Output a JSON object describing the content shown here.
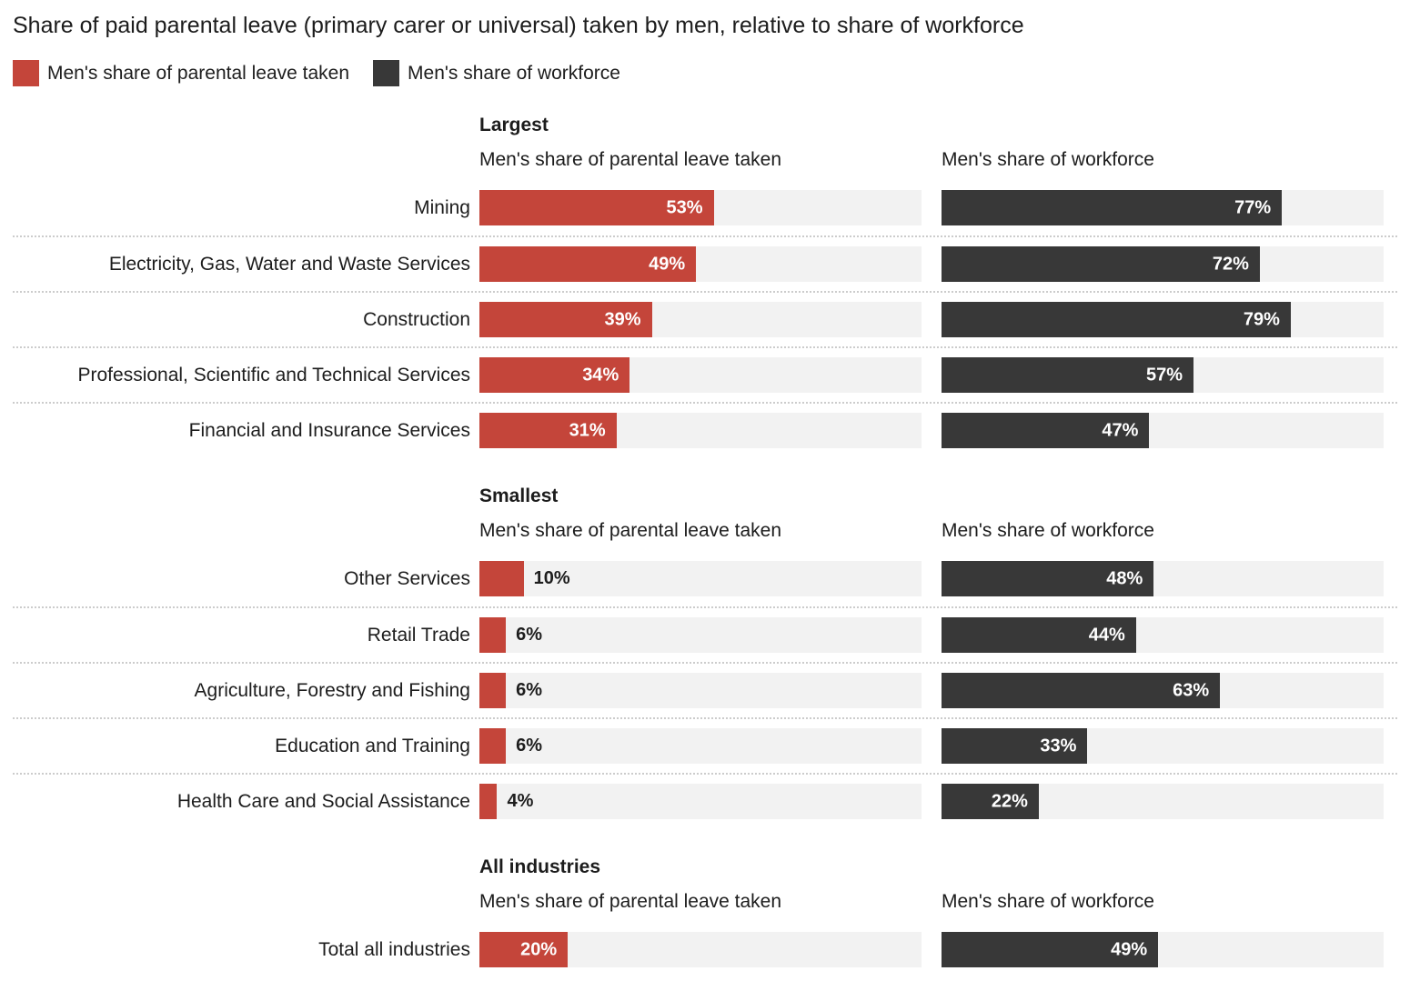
{
  "title": "Share of paid parental leave (primary carer or universal) taken by men, relative to share of workforce",
  "legend": {
    "position": "top",
    "items": [
      {
        "label": "Men's share of parental leave taken",
        "color": "#c4453a"
      },
      {
        "label": "Men's share of workforce",
        "color": "#383838"
      }
    ]
  },
  "columns": {
    "leave": "Men's share of parental leave taken",
    "workforce": "Men's share of workforce"
  },
  "colors": {
    "leave_bar": "#c4453a",
    "workforce_bar": "#383838",
    "track": "#f2f2f2",
    "separator": "#cccccc",
    "text": "#1d1d1d",
    "value_inside": "#ffffff"
  },
  "chart_data": {
    "type": "bar",
    "orientation": "horizontal",
    "unit": "%",
    "xlim": [
      0,
      100
    ],
    "grid": false,
    "title": "Share of paid parental leave (primary carer or universal) taken by men, relative to share of workforce",
    "series_names": [
      "Men's share of parental leave taken",
      "Men's share of workforce"
    ],
    "sections": [
      {
        "heading": "Largest",
        "rows": [
          {
            "label": "Mining",
            "leave": 53,
            "workforce": 77
          },
          {
            "label": "Electricity, Gas, Water and Waste Services",
            "leave": 49,
            "workforce": 72
          },
          {
            "label": "Construction",
            "leave": 39,
            "workforce": 79
          },
          {
            "label": "Professional, Scientific and Technical Services",
            "leave": 34,
            "workforce": 57
          },
          {
            "label": "Financial and Insurance Services",
            "leave": 31,
            "workforce": 47
          }
        ]
      },
      {
        "heading": "Smallest",
        "rows": [
          {
            "label": "Other Services",
            "leave": 10,
            "workforce": 48
          },
          {
            "label": "Retail Trade",
            "leave": 6,
            "workforce": 44
          },
          {
            "label": "Agriculture, Forestry and Fishing",
            "leave": 6,
            "workforce": 63
          },
          {
            "label": "Education and Training",
            "leave": 6,
            "workforce": 33
          },
          {
            "label": "Health Care and Social Assistance",
            "leave": 4,
            "workforce": 22
          }
        ]
      },
      {
        "heading": "All industries",
        "rows": [
          {
            "label": "Total all industries",
            "leave": 20,
            "workforce": 49
          }
        ]
      }
    ]
  }
}
